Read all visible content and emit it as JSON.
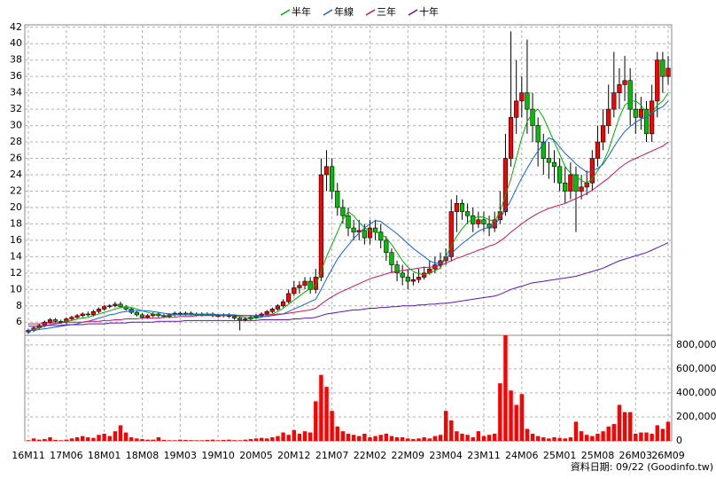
{
  "chart_data": {
    "type": "candlestick",
    "legend": "top",
    "grid": true,
    "up_color": "#ff0000",
    "down_color": "#00c000",
    "categories": [
      "16M11",
      null,
      null,
      null,
      null,
      null,
      null,
      "17M06",
      null,
      null,
      null,
      null,
      null,
      null,
      "18M01",
      null,
      null,
      null,
      null,
      null,
      null,
      "18M08",
      null,
      null,
      null,
      null,
      null,
      null,
      "19M03",
      null,
      null,
      null,
      null,
      null,
      null,
      "19M10",
      null,
      null,
      null,
      null,
      null,
      null,
      "20M05",
      null,
      null,
      null,
      null,
      null,
      null,
      "20M12",
      null,
      null,
      null,
      null,
      null,
      null,
      "21M07",
      null,
      null,
      null,
      null,
      null,
      null,
      "22M02",
      null,
      null,
      null,
      null,
      null,
      null,
      "22M09",
      null,
      null,
      null,
      null,
      null,
      null,
      "23M04",
      null,
      null,
      null,
      null,
      null,
      null,
      "23M11",
      null,
      null,
      null,
      null,
      null,
      null,
      "24M06",
      null,
      null,
      null,
      null,
      null,
      null,
      "25M01",
      null,
      null,
      null,
      null,
      null,
      null,
      "25M08",
      null,
      null,
      null,
      null,
      null,
      null,
      "26M03",
      null,
      null,
      null,
      null,
      null,
      "26M09"
    ],
    "open": [
      4.8,
      5.0,
      5.3,
      5.6,
      6.0,
      6.3,
      6.1,
      6.0,
      6.4,
      6.6,
      6.8,
      7.0,
      6.9,
      7.3,
      7.6,
      7.9,
      8.0,
      8.2,
      7.9,
      7.6,
      7.2,
      6.9,
      6.6,
      6.8,
      7.0,
      6.8,
      6.7,
      6.9,
      7.1,
      7.0,
      7.1,
      7.0,
      6.9,
      7.0,
      7.0,
      6.8,
      6.8,
      6.9,
      6.7,
      6.5,
      6.3,
      6.4,
      6.6,
      6.8,
      7.0,
      7.3,
      7.6,
      8.0,
      8.5,
      9.5,
      10.2,
      10.5,
      11.0,
      10.0,
      11.5,
      24.0,
      25.0,
      22.0,
      20.0,
      19.0,
      17.5,
      17.0,
      17.2,
      16.3,
      17.5,
      17.0,
      16.0,
      14.5,
      13.0,
      12.0,
      11.5,
      11.0,
      11.2,
      11.5,
      12.0,
      12.5,
      13.0,
      13.5,
      14.0,
      19.5,
      20.5,
      19.5,
      19.0,
      18.0,
      18.5,
      18.0,
      17.5,
      18.5,
      19.5,
      26.0,
      31.0,
      33.0,
      34.0,
      32.0,
      30.0,
      28.0,
      26.0,
      25.5,
      25.0,
      23.0,
      22.0,
      24.0,
      22.0,
      22.5,
      23.0,
      26.0,
      28.0,
      30.0,
      32.0,
      34.0,
      35.0,
      35.5,
      32.0,
      31.0,
      32.0,
      29.0,
      33.0,
      38.0,
      36.0
    ],
    "high": [
      5.2,
      5.5,
      5.8,
      6.2,
      6.5,
      6.5,
      6.3,
      6.6,
      6.8,
      7.0,
      7.2,
      7.3,
      7.5,
      7.8,
      8.1,
      8.2,
      8.5,
      8.5,
      8.1,
      7.8,
      7.4,
      7.1,
      7.0,
      7.2,
      7.2,
      7.0,
      7.1,
      7.3,
      7.3,
      7.3,
      7.3,
      7.2,
      7.2,
      7.2,
      7.2,
      7.0,
      7.1,
      7.1,
      6.9,
      6.7,
      6.6,
      6.8,
      7.0,
      7.2,
      7.5,
      7.8,
      8.2,
      8.8,
      10.0,
      11.0,
      11.0,
      11.5,
      11.5,
      12.5,
      26.0,
      27.0,
      26.0,
      23.0,
      21.0,
      20.0,
      18.5,
      18.5,
      18.0,
      18.5,
      18.5,
      18.0,
      16.5,
      15.0,
      13.5,
      13.0,
      12.5,
      12.0,
      12.5,
      12.8,
      13.5,
      14.0,
      14.5,
      15.0,
      21.0,
      21.5,
      21.0,
      20.5,
      20.0,
      19.5,
      19.5,
      19.0,
      19.5,
      22.0,
      29.0,
      41.5,
      38.0,
      36.0,
      40.5,
      34.0,
      31.0,
      29.0,
      28.0,
      27.0,
      26.0,
      25.0,
      25.5,
      25.0,
      24.0,
      24.5,
      27.0,
      30.0,
      32.0,
      35.0,
      39.0,
      37.0,
      38.5,
      37.0,
      34.0,
      33.5,
      33.0,
      35.0,
      39.0,
      39.0,
      38.5
    ],
    "low": [
      4.6,
      4.8,
      5.1,
      5.4,
      5.8,
      5.9,
      5.8,
      5.8,
      6.2,
      6.4,
      6.6,
      6.7,
      6.7,
      7.1,
      7.4,
      7.7,
      7.8,
      7.7,
      7.4,
      7.0,
      6.7,
      6.4,
      6.4,
      6.6,
      6.6,
      6.5,
      6.5,
      6.7,
      6.8,
      6.8,
      6.8,
      6.7,
      6.7,
      6.8,
      6.6,
      6.6,
      6.6,
      6.5,
      6.3,
      5.0,
      6.1,
      6.2,
      6.4,
      6.6,
      6.8,
      7.1,
      7.4,
      7.8,
      8.3,
      9.2,
      9.5,
      10.0,
      9.5,
      9.5,
      11.0,
      22.0,
      21.0,
      19.0,
      18.0,
      16.5,
      16.0,
      16.0,
      15.5,
      15.5,
      16.0,
      15.0,
      13.5,
      12.0,
      11.0,
      10.5,
      10.0,
      10.5,
      10.8,
      11.2,
      11.8,
      12.0,
      12.5,
      13.0,
      13.5,
      17.0,
      18.5,
      18.0,
      17.0,
      17.5,
      17.0,
      16.5,
      17.0,
      18.0,
      19.0,
      25.0,
      29.0,
      31.0,
      29.0,
      28.0,
      25.0,
      24.0,
      23.5,
      23.0,
      22.0,
      20.5,
      21.0,
      17.0,
      21.0,
      21.5,
      22.0,
      25.0,
      27.0,
      29.0,
      31.0,
      32.0,
      33.0,
      30.0,
      29.0,
      29.5,
      28.0,
      28.0,
      31.0,
      34.0,
      35.0
    ],
    "close": [
      5.0,
      5.3,
      5.6,
      6.0,
      6.3,
      6.1,
      6.0,
      6.4,
      6.6,
      6.8,
      7.0,
      6.9,
      7.3,
      7.6,
      7.9,
      8.0,
      8.2,
      7.9,
      7.6,
      7.2,
      6.9,
      6.6,
      6.8,
      7.0,
      6.8,
      6.7,
      6.9,
      7.1,
      7.0,
      7.1,
      7.0,
      6.9,
      7.0,
      7.0,
      6.8,
      6.8,
      6.9,
      6.7,
      6.5,
      6.3,
      6.4,
      6.6,
      6.8,
      7.0,
      7.3,
      7.6,
      8.0,
      8.5,
      9.5,
      10.2,
      10.5,
      11.0,
      10.0,
      11.5,
      24.0,
      25.0,
      22.0,
      20.0,
      19.0,
      17.5,
      17.0,
      17.2,
      16.3,
      17.5,
      17.0,
      16.0,
      14.5,
      13.0,
      12.0,
      11.5,
      11.0,
      11.2,
      11.5,
      12.0,
      12.5,
      13.0,
      13.5,
      14.0,
      19.5,
      20.5,
      19.5,
      19.0,
      18.0,
      18.5,
      18.0,
      17.5,
      18.5,
      19.5,
      26.0,
      31.0,
      33.0,
      34.0,
      32.0,
      30.0,
      28.0,
      26.0,
      25.5,
      25.0,
      23.0,
      22.0,
      24.0,
      22.0,
      22.5,
      23.0,
      26.0,
      28.0,
      30.0,
      32.0,
      34.0,
      35.0,
      35.5,
      32.0,
      31.0,
      32.0,
      29.0,
      33.0,
      38.0,
      36.0,
      37.0
    ],
    "series": [
      {
        "name": "半年",
        "color": "#00b000",
        "values": [
          5.0,
          5.1,
          5.3,
          5.5,
          5.7,
          5.8,
          5.9,
          6.1,
          6.2,
          6.4,
          6.5,
          6.6,
          6.8,
          7.0,
          7.2,
          7.4,
          7.6,
          7.8,
          7.9,
          7.8,
          7.6,
          7.4,
          7.2,
          7.0,
          6.9,
          6.8,
          6.8,
          6.9,
          6.9,
          7.0,
          7.0,
          7.0,
          7.0,
          7.0,
          7.0,
          6.9,
          6.9,
          6.9,
          6.8,
          6.7,
          6.6,
          6.5,
          6.5,
          6.6,
          6.8,
          7.0,
          7.3,
          7.7,
          8.2,
          8.7,
          9.2,
          9.7,
          10.1,
          10.5,
          12.2,
          14.0,
          15.5,
          17.0,
          18.5,
          19.5,
          19.0,
          18.2,
          17.5,
          17.2,
          17.0,
          16.8,
          16.3,
          15.5,
          14.5,
          13.5,
          12.7,
          12.2,
          11.9,
          11.8,
          12.0,
          12.3,
          12.6,
          14.0,
          15.3,
          16.5,
          17.4,
          18.2,
          18.6,
          18.9,
          18.8,
          18.5,
          18.3,
          19.5,
          21.5,
          23.5,
          26.0,
          28.5,
          30.5,
          31.5,
          32.0,
          31.0,
          29.5,
          28.0,
          26.5,
          25.0,
          24.2,
          23.8,
          23.3,
          23.0,
          23.5,
          24.5,
          25.5,
          27.0,
          29.0,
          31.0,
          32.5,
          33.0,
          33.0,
          32.5,
          31.5,
          31.5,
          32.5,
          33.0,
          34.0
        ]
      },
      {
        "name": "年線",
        "color": "#1060e0",
        "values": [
          5.0,
          5.0,
          5.1,
          5.2,
          5.3,
          5.4,
          5.5,
          5.6,
          5.7,
          5.8,
          6.0,
          6.1,
          6.3,
          6.5,
          6.7,
          6.9,
          7.0,
          7.2,
          7.3,
          7.4,
          7.4,
          7.4,
          7.4,
          7.3,
          7.2,
          7.1,
          7.0,
          7.0,
          6.9,
          6.9,
          6.9,
          6.9,
          6.9,
          6.9,
          6.9,
          6.9,
          6.9,
          6.9,
          6.9,
          6.8,
          6.8,
          6.8,
          6.7,
          6.7,
          6.7,
          6.8,
          6.9,
          7.0,
          7.3,
          7.6,
          7.9,
          8.2,
          8.5,
          8.8,
          10.0,
          11.3,
          12.5,
          13.7,
          14.6,
          15.4,
          16.2,
          16.9,
          17.5,
          18.0,
          18.4,
          18.3,
          17.8,
          17.3,
          16.8,
          16.2,
          15.6,
          15.0,
          14.5,
          14.0,
          13.5,
          13.2,
          13.2,
          13.8,
          14.4,
          15.0,
          15.6,
          16.1,
          16.6,
          17.1,
          17.4,
          17.6,
          17.9,
          18.7,
          19.7,
          20.9,
          22.3,
          23.6,
          24.8,
          25.9,
          26.9,
          27.8,
          28.5,
          28.2,
          27.4,
          26.6,
          26.0,
          25.3,
          24.8,
          24.3,
          24.4,
          24.8,
          25.3,
          26.3,
          27.4,
          28.4,
          29.3,
          29.9,
          30.4,
          30.8,
          31.0,
          31.5,
          32.0,
          32.3,
          33.0
        ]
      },
      {
        "name": "三年",
        "color": "#d0105a",
        "values": [
          5.8,
          5.8,
          5.8,
          5.9,
          5.9,
          5.9,
          5.9,
          6.0,
          6.0,
          6.0,
          6.0,
          6.1,
          6.1,
          6.1,
          6.2,
          6.2,
          6.3,
          6.3,
          6.4,
          6.4,
          6.4,
          6.5,
          6.5,
          6.5,
          6.5,
          6.6,
          6.6,
          6.6,
          6.7,
          6.7,
          6.7,
          6.8,
          6.8,
          6.8,
          6.8,
          6.8,
          6.8,
          6.8,
          6.8,
          6.8,
          6.8,
          6.8,
          6.8,
          6.9,
          6.9,
          6.9,
          7.0,
          7.0,
          7.1,
          7.2,
          7.3,
          7.4,
          7.5,
          7.7,
          8.2,
          8.7,
          9.1,
          9.5,
          9.8,
          10.1,
          10.4,
          10.7,
          11.0,
          11.3,
          11.5,
          11.7,
          11.9,
          12.1,
          12.2,
          12.3,
          12.4,
          12.5,
          12.6,
          12.7,
          12.7,
          12.8,
          12.9,
          13.2,
          13.5,
          13.8,
          14.0,
          14.3,
          14.5,
          14.8,
          15.0,
          15.3,
          15.5,
          15.9,
          16.4,
          17.0,
          17.5,
          18.0,
          18.5,
          18.9,
          19.3,
          19.6,
          19.9,
          20.1,
          20.3,
          20.5,
          20.8,
          21.1,
          21.4,
          21.7,
          22.1,
          22.6,
          23.1,
          23.6,
          24.2,
          24.8,
          25.3,
          25.7,
          26.0,
          26.3,
          26.6,
          26.9,
          27.2,
          27.5,
          28.0
        ]
      },
      {
        "name": "十年",
        "color": "#6010c0",
        "values": [
          5.5,
          5.5,
          5.5,
          5.6,
          5.6,
          5.6,
          5.6,
          5.7,
          5.7,
          5.7,
          5.7,
          5.8,
          5.8,
          5.8,
          5.8,
          5.9,
          5.9,
          5.9,
          5.9,
          6.0,
          6.0,
          6.0,
          6.0,
          6.0,
          6.1,
          6.1,
          6.1,
          6.1,
          6.1,
          6.2,
          6.2,
          6.2,
          6.2,
          6.2,
          6.2,
          6.2,
          6.2,
          6.2,
          6.2,
          6.2,
          6.2,
          6.2,
          6.2,
          6.3,
          6.3,
          6.3,
          6.3,
          6.3,
          6.3,
          6.4,
          6.4,
          6.5,
          6.5,
          6.6,
          6.8,
          7.0,
          7.1,
          7.2,
          7.3,
          7.4,
          7.5,
          7.5,
          7.6,
          7.7,
          7.7,
          7.8,
          7.8,
          7.9,
          7.9,
          8.0,
          8.0,
          8.0,
          8.1,
          8.1,
          8.2,
          8.2,
          8.3,
          8.3,
          8.4,
          8.5,
          8.6,
          8.7,
          8.8,
          8.9,
          9.0,
          9.1,
          9.2,
          9.4,
          9.7,
          10.0,
          10.2,
          10.4,
          10.6,
          10.8,
          10.9,
          11.0,
          11.1,
          11.2,
          11.3,
          11.4,
          11.5,
          11.6,
          11.8,
          12.0,
          12.2,
          12.4,
          12.6,
          12.9,
          13.2,
          13.5,
          13.7,
          13.9,
          14.1,
          14.3,
          14.5,
          14.8,
          15.1,
          15.4,
          15.7
        ]
      }
    ],
    "ylim": [
      4.4,
      42.3
    ],
    "yticks": [
      6,
      8,
      10,
      12,
      14,
      16,
      18,
      20,
      22,
      24,
      26,
      28,
      30,
      32,
      34,
      36,
      38,
      40,
      42
    ],
    "volume": {
      "color": "#ff0000",
      "values": [
        5000,
        20000,
        10000,
        15000,
        30000,
        8000,
        5000,
        10000,
        20000,
        30000,
        40000,
        30000,
        25000,
        50000,
        60000,
        40000,
        80000,
        130000,
        70000,
        30000,
        20000,
        15000,
        10000,
        10000,
        30000,
        8000,
        5000,
        5000,
        10000,
        8000,
        6000,
        5000,
        5000,
        8000,
        10000,
        5000,
        8000,
        10000,
        6000,
        5000,
        10000,
        15000,
        20000,
        25000,
        20000,
        30000,
        40000,
        70000,
        50000,
        90000,
        60000,
        80000,
        70000,
        330000,
        550000,
        450000,
        250000,
        120000,
        80000,
        60000,
        50000,
        40000,
        60000,
        30000,
        40000,
        50000,
        60000,
        40000,
        30000,
        30000,
        20000,
        15000,
        20000,
        30000,
        20000,
        40000,
        50000,
        250000,
        170000,
        80000,
        60000,
        50000,
        30000,
        80000,
        40000,
        50000,
        60000,
        480000,
        880000,
        420000,
        300000,
        390000,
        100000,
        60000,
        40000,
        30000,
        20000,
        30000,
        25000,
        20000,
        30000,
        160000,
        80000,
        50000,
        40000,
        60000,
        80000,
        120000,
        140000,
        300000,
        240000,
        240000,
        60000,
        70000,
        70000,
        60000,
        130000,
        100000,
        160000
      ],
      "ylim": [
        0,
        880000
      ],
      "yticks": [
        0,
        {
          "value": 200000,
          "label": "200,000"
        },
        {
          "value": 400000,
          "label": "400,000"
        },
        {
          "value": 600000,
          "label": "600,000"
        },
        {
          "value": 800000,
          "label": "800,000"
        }
      ]
    },
    "footer": "資料日期: 09/22  (Goodinfo.tw)"
  }
}
